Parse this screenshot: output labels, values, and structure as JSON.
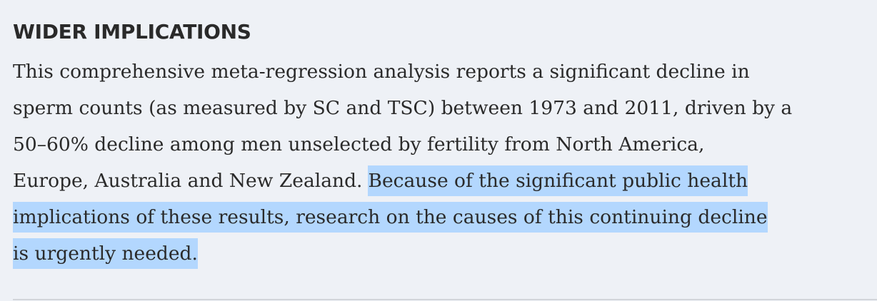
{
  "section": {
    "heading": "WIDER IMPLICATIONS",
    "paragraph": {
      "lines": [
        [
          {
            "text": "This comprehensive meta-regression analysis reports a significant decline in",
            "highlight": false
          }
        ],
        [
          {
            "text": "sperm counts (as measured by SC and TSC) between 1973 and 2011, driven by a",
            "highlight": false
          }
        ],
        [
          {
            "text": "50–60% decline among men unselected by fertility from North America,",
            "highlight": false
          }
        ],
        [
          {
            "text": "Europe, Australia and New Zealand.",
            "highlight": false
          },
          {
            "text": "Because of the significant public health",
            "highlight": true
          }
        ],
        [
          {
            "text": "implications of these results, research on the causes of this continuing decline",
            "highlight": true
          }
        ],
        [
          {
            "text": "is urgently needed.",
            "highlight": true
          }
        ]
      ]
    }
  }
}
